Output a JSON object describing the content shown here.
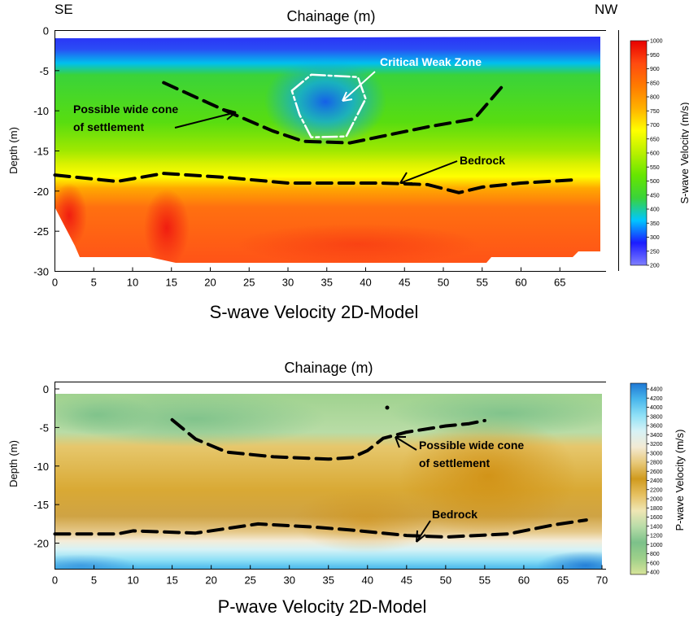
{
  "chart_data": [
    {
      "type": "heatmap",
      "title": "S-wave Velocity 2D-Model",
      "top_label": "Chainage (m)",
      "corner_left": "SE",
      "corner_right": "NW",
      "xlabel": "",
      "ylabel": "Depth (m)",
      "xlim": [
        0,
        70
      ],
      "ylim": [
        -30,
        0
      ],
      "x_ticks": [
        "0",
        "5",
        "10",
        "15",
        "20",
        "25",
        "30",
        "35",
        "40",
        "45",
        "50",
        "55",
        "60",
        "65"
      ],
      "x_tick_values": [
        0,
        5,
        10,
        15,
        20,
        25,
        30,
        35,
        40,
        45,
        50,
        55,
        60,
        65
      ],
      "y_ticks": [
        "0",
        "-5",
        "-10",
        "-15",
        "-20",
        "-25",
        "-30"
      ],
      "y_tick_values": [
        0,
        -5,
        -10,
        -15,
        -20,
        -25,
        -30
      ],
      "colorbar": {
        "label": "S-wave Velocity (m/s)",
        "ticks": [
          "1000",
          "950",
          "900",
          "850",
          "800",
          "750",
          "700",
          "650",
          "600",
          "550",
          "500",
          "450",
          "400",
          "350",
          "300",
          "250",
          "200"
        ],
        "range": [
          200,
          1000
        ],
        "colors": [
          "#7f7fff",
          "#1c1cff",
          "#00c6ff",
          "#3ad33a",
          "#66e600",
          "#b8f000",
          "#ffff00",
          "#ffb000",
          "#ff7a00",
          "#ff4a10",
          "#e80000"
        ]
      },
      "annotations": [
        {
          "text": "Critical Weak Zone",
          "x": 41,
          "y": -4
        },
        {
          "text": "Possible wide cone",
          "x": 2,
          "y": -10
        },
        {
          "text": "of settlement",
          "x": 2,
          "y": -12
        },
        {
          "text": "Bedrock",
          "x": 51,
          "y": -16.3
        }
      ],
      "interpreted_lines": {
        "settlement_cone": [
          [
            14,
            -6.5
          ],
          [
            22,
            -10
          ],
          [
            28,
            -12.5
          ],
          [
            32,
            -13.8
          ],
          [
            38,
            -14
          ],
          [
            42,
            -13.2
          ],
          [
            48,
            -12
          ],
          [
            54,
            -11
          ],
          [
            58,
            -6.5
          ]
        ],
        "bedrock": [
          [
            0,
            -18
          ],
          [
            8,
            -18.8
          ],
          [
            14,
            -17.8
          ],
          [
            22,
            -18.3
          ],
          [
            30,
            -19
          ],
          [
            42,
            -19
          ],
          [
            48,
            -19.2
          ],
          [
            52,
            -20.2
          ],
          [
            55,
            -19.5
          ],
          [
            60,
            -19
          ],
          [
            67,
            -18.6
          ]
        ],
        "weak_zone": [
          [
            30.5,
            -7.5
          ],
          [
            33,
            -5.5
          ],
          [
            39,
            -5.8
          ],
          [
            40,
            -8.5
          ],
          [
            37.5,
            -13.2
          ],
          [
            33,
            -13.3
          ],
          [
            31.5,
            -10.5
          ],
          [
            30.5,
            -7.5
          ]
        ]
      }
    },
    {
      "type": "heatmap",
      "title": "P-wave Velocity 2D-Model",
      "top_label": "Chainage (m)",
      "xlabel": "",
      "ylabel": "Depth (m)",
      "xlim": [
        0,
        70
      ],
      "ylim": [
        -23,
        0
      ],
      "x_ticks": [
        "0",
        "5",
        "10",
        "15",
        "20",
        "25",
        "30",
        "35",
        "40",
        "45",
        "50",
        "55",
        "60",
        "65",
        "70"
      ],
      "x_tick_values": [
        0,
        5,
        10,
        15,
        20,
        25,
        30,
        35,
        40,
        45,
        50,
        55,
        60,
        65,
        70
      ],
      "y_ticks": [
        "0",
        "-5",
        "-10",
        "-15",
        "-20"
      ],
      "y_tick_values": [
        0,
        -5,
        -10,
        -15,
        -20
      ],
      "colorbar": {
        "label": "P-wave Velocity (m/s)",
        "ticks": [
          "4400",
          "4200",
          "4000",
          "3800",
          "3600",
          "3400",
          "3200",
          "3000",
          "2800",
          "2600",
          "2400",
          "2200",
          "2000",
          "1800",
          "1600",
          "1400",
          "1200",
          "1000",
          "800",
          "600",
          "400"
        ],
        "range": [
          400,
          4400
        ],
        "colors": [
          "#d8e49a",
          "#9ed08a",
          "#7cc18a",
          "#b8dca8",
          "#efe6b4",
          "#e6c060",
          "#d09a1e",
          "#e7c878",
          "#f3ead4",
          "#d6f2f6",
          "#8ee0f6",
          "#48b6ec",
          "#1f78d4"
        ]
      },
      "annotations": [
        {
          "text": "Possible wide cone",
          "x": 46,
          "y": -6.8
        },
        {
          "text": "of settlement",
          "x": 46,
          "y": -9.2
        },
        {
          "text": "Bedrock",
          "x": 47,
          "y": -15.6
        }
      ],
      "interpreted_lines": {
        "settlement_cone": [
          [
            15,
            -4
          ],
          [
            18,
            -6.5
          ],
          [
            22,
            -8.2
          ],
          [
            28,
            -8.8
          ],
          [
            35,
            -9.1
          ],
          [
            38,
            -8.9
          ],
          [
            40,
            -8
          ],
          [
            42,
            -6.4
          ],
          [
            45,
            -5.6
          ],
          [
            50,
            -4.8
          ],
          [
            53,
            -4.5
          ],
          [
            55,
            -4.1
          ]
        ],
        "bedrock": [
          [
            0,
            -18.8
          ],
          [
            8,
            -18.8
          ],
          [
            10,
            -18.4
          ],
          [
            18,
            -18.7
          ],
          [
            26,
            -17.5
          ],
          [
            33,
            -17.9
          ],
          [
            38,
            -18.3
          ],
          [
            45,
            -19
          ],
          [
            50,
            -19.2
          ],
          [
            58,
            -18.8
          ],
          [
            64,
            -17.6
          ],
          [
            68,
            -17
          ]
        ]
      }
    }
  ]
}
